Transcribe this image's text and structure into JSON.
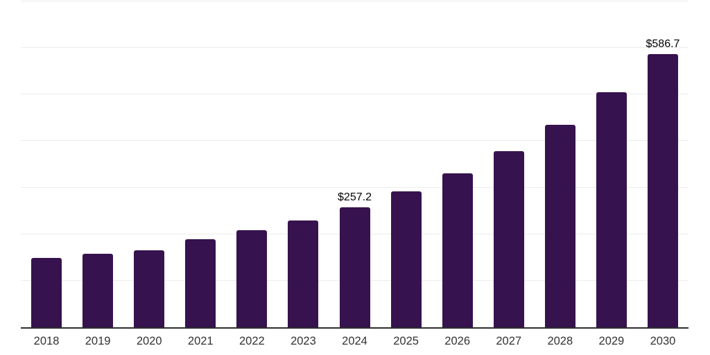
{
  "chart_data": {
    "type": "bar",
    "title": "",
    "xlabel": "",
    "ylabel": "",
    "categories": [
      "2018",
      "2019",
      "2020",
      "2021",
      "2022",
      "2023",
      "2024",
      "2025",
      "2026",
      "2027",
      "2028",
      "2029",
      "2030"
    ],
    "values": [
      148.6,
      157.5,
      165.5,
      188.7,
      208.0,
      229.5,
      257.2,
      292.6,
      331.3,
      378.8,
      435.3,
      505.1,
      586.7
    ],
    "value_labels": [
      "",
      "",
      "",
      "",
      "",
      "",
      "$257.2",
      "",
      "",
      "",
      "",
      "",
      "$586.7"
    ],
    "labeled_points": [
      {
        "category": "2024",
        "label": "$257.2"
      },
      {
        "category": "2030",
        "label": "$586.7"
      }
    ],
    "ylim": [
      0,
      700
    ],
    "gridline_interval": 100,
    "grid": true,
    "y_tick_labels_visible": false,
    "legend": false
  },
  "colors": {
    "bar": "#36124E",
    "gridline": "#ECECEC",
    "axis_line": "#2E2E2E",
    "tick_label": "#333333",
    "value_label": "#000000",
    "background": "#FFFFFF"
  }
}
